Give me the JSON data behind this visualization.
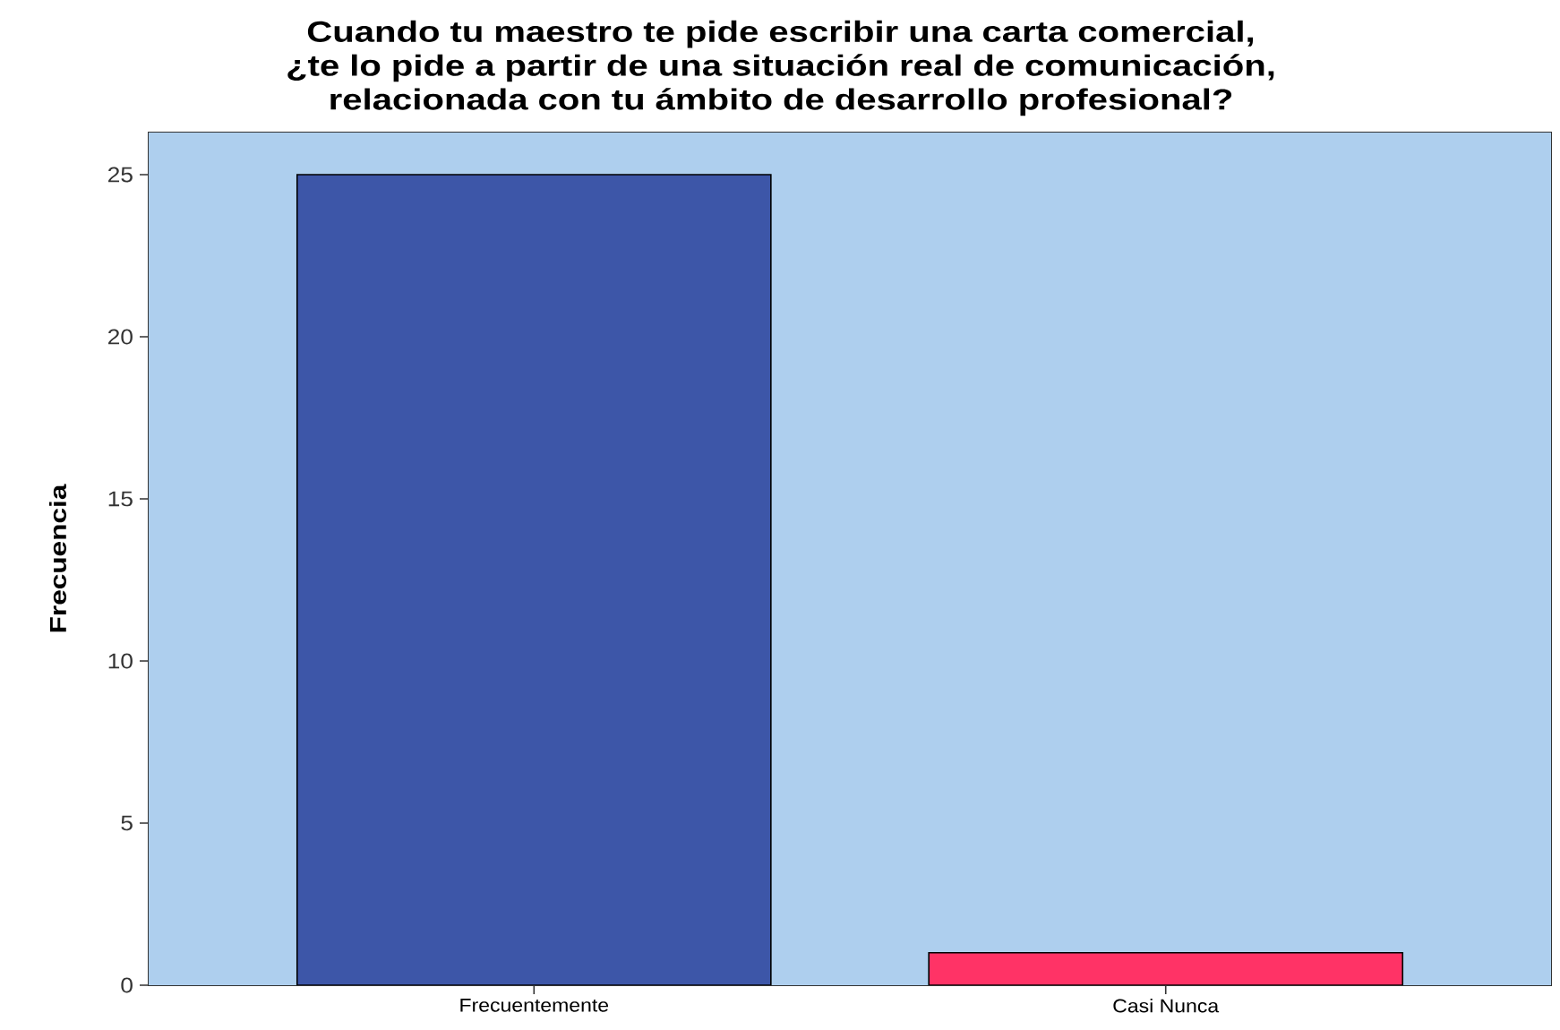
{
  "chart_data": {
    "type": "bar",
    "title": "Cuando tu maestro te pide escribir una carta comercial, ¿te lo pide a partir de una situación real de comunicación, relacionada con tu ámbito de desarrollo profesional?",
    "ylabel": "Frecuencia",
    "categories": [
      "Frecuentemente",
      "Casi Nunca"
    ],
    "values": [
      25,
      1
    ],
    "colors": [
      "#3d56a8",
      "#ff3366"
    ],
    "ylim": [
      0,
      26.3
    ],
    "yticks": [
      0,
      5,
      10,
      15,
      20,
      25
    ]
  }
}
